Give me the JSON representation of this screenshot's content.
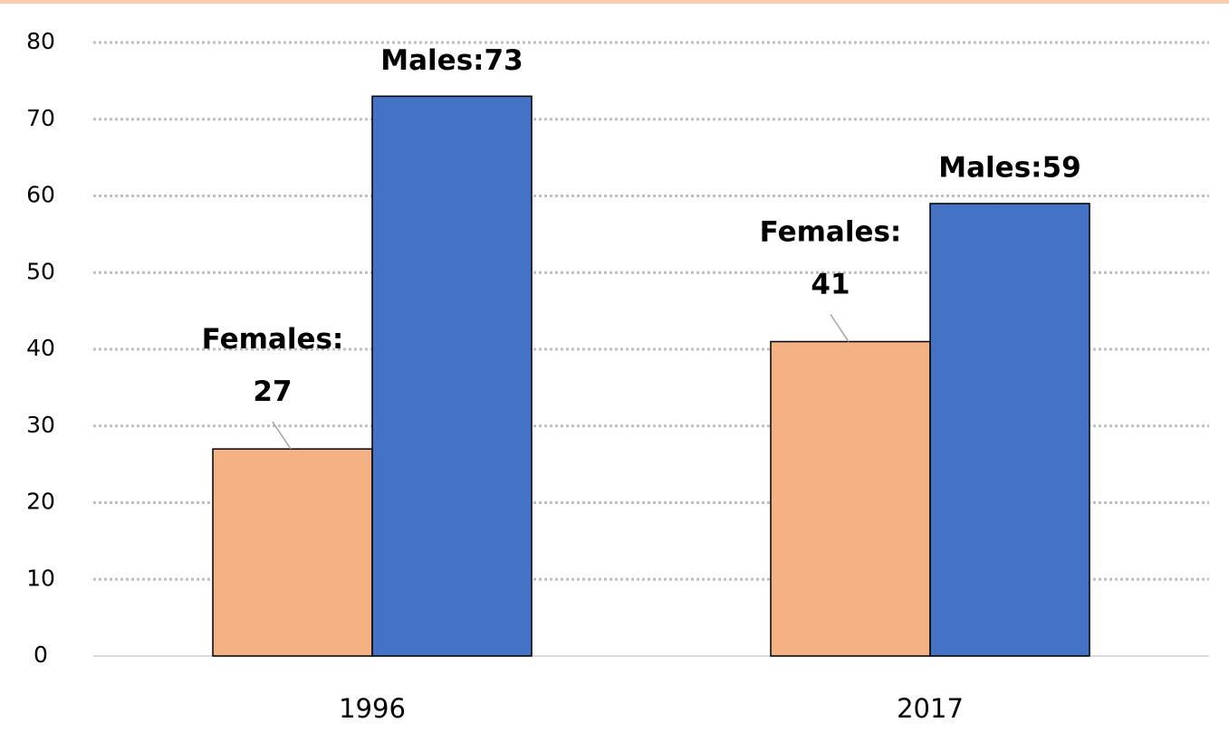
{
  "chart_data": {
    "type": "bar",
    "categories": [
      "1996",
      "2017"
    ],
    "series": [
      {
        "name": "Females",
        "color": "#f4b183",
        "values": [
          27,
          41
        ],
        "value_labels": [
          "Females: 27",
          "Females: 41"
        ]
      },
      {
        "name": "Males",
        "color": "#4472c4",
        "values": [
          73,
          59
        ],
        "value_labels": [
          "Males:73",
          "Males:59"
        ]
      }
    ],
    "ylim": [
      0,
      80
    ],
    "yticks": [
      0,
      10,
      20,
      30,
      40,
      50,
      60,
      70,
      80
    ],
    "grid": true
  }
}
